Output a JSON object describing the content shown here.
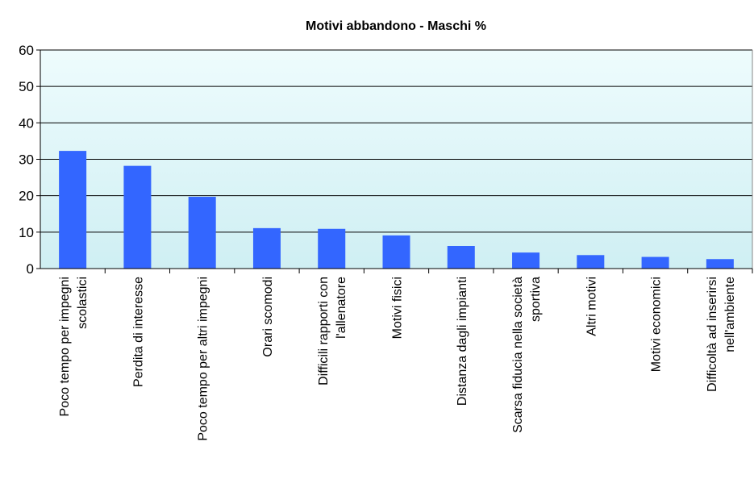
{
  "chart_data": {
    "type": "bar",
    "title": "Motivi abbandono - Maschi %",
    "categories": [
      [
        "Poco tempo per impegni",
        "scolastici"
      ],
      [
        "Perdita di interesse"
      ],
      [
        "Poco tempo per altri impegni"
      ],
      [
        "Orari scomodi"
      ],
      [
        "Difficili rapporti con",
        "l'allenatore"
      ],
      [
        "Motivi fisici"
      ],
      [
        "Distanza dagli impianti"
      ],
      [
        "Scarsa fiducia nella società",
        "sportiva"
      ],
      [
        "Altri motivi"
      ],
      [
        "Motivi economici"
      ],
      [
        "Difficoltà ad inserirsi",
        "nell'ambiente"
      ]
    ],
    "values": [
      32.3,
      28.2,
      19.7,
      11.1,
      10.9,
      9.1,
      6.2,
      4.4,
      3.7,
      3.2,
      2.6
    ],
    "color": "#3366ff",
    "ylim": [
      0,
      60
    ],
    "yticks": [
      0,
      10,
      20,
      30,
      40,
      50,
      60
    ],
    "grid": true
  }
}
